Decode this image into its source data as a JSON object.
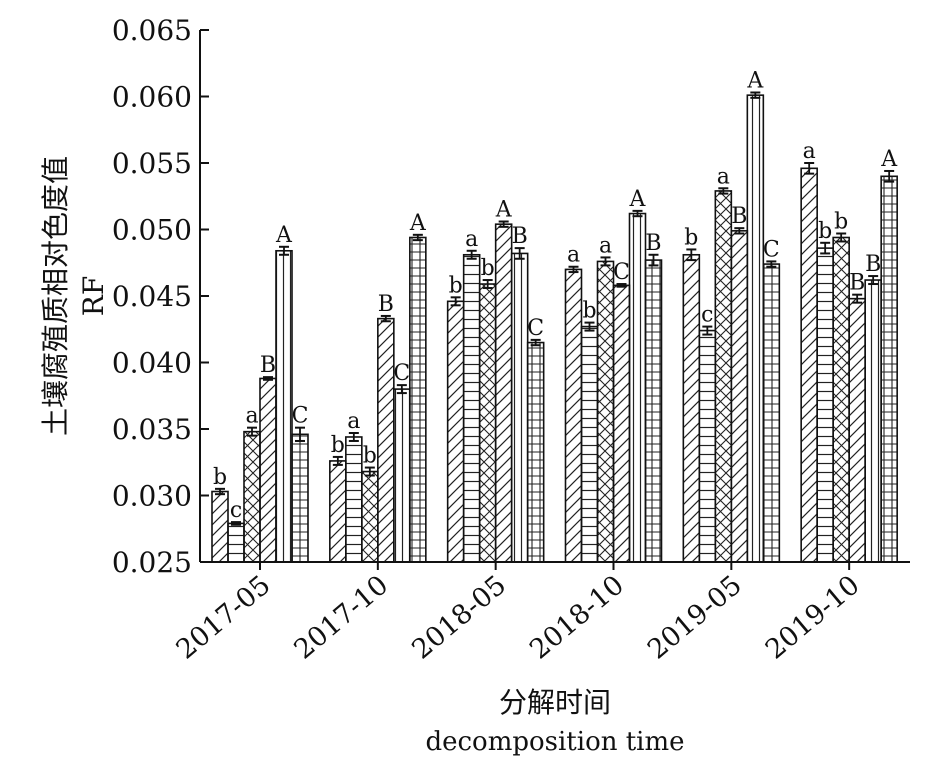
{
  "chart_data": {
    "type": "bar",
    "title": "",
    "xlabel": "分解时间",
    "xlabel_en": "decomposition time",
    "ylabel": "土壤腐殖质相对色度值",
    "ylabel_en": "RF",
    "ylim": [
      0.025,
      0.065
    ],
    "yticks": [
      "0.025",
      "0.030",
      "0.035",
      "0.040",
      "0.045",
      "0.050",
      "0.055",
      "0.060",
      "0.065"
    ],
    "grid": false,
    "legend": "none",
    "categories": [
      "2017-05",
      "2017-10",
      "2018-05",
      "2018-10",
      "2019-05",
      "2019-10"
    ],
    "series": [
      {
        "pattern": "diag-right",
        "values": [
          0.0303,
          0.0326,
          0.0446,
          0.047,
          0.0481,
          0.0546
        ],
        "errors": [
          0.0002,
          0.0003,
          0.0003,
          0.0002,
          0.0004,
          0.0004
        ],
        "labels": [
          "b",
          "b",
          "b",
          "a",
          "b",
          "a"
        ]
      },
      {
        "pattern": "horizontal",
        "values": [
          0.0279,
          0.0344,
          0.0481,
          0.0427,
          0.0424,
          0.0486
        ],
        "errors": [
          0.0001,
          0.0003,
          0.0003,
          0.0003,
          0.0003,
          0.0004
        ],
        "labels": [
          "c",
          "a",
          "a",
          "b",
          "c",
          "b"
        ]
      },
      {
        "pattern": "cross-diag",
        "values": [
          0.0348,
          0.0318,
          0.0459,
          0.0476,
          0.0529,
          0.0494
        ],
        "errors": [
          0.0003,
          0.0003,
          0.0003,
          0.0003,
          0.0002,
          0.0003
        ],
        "labels": [
          "a",
          "b",
          "b",
          "a",
          "a",
          "b"
        ]
      },
      {
        "pattern": "diag-right",
        "values": [
          0.0388,
          0.0433,
          0.0504,
          0.0458,
          0.0499,
          0.0448
        ],
        "errors": [
          0.0001,
          0.0002,
          0.0002,
          0.0001,
          0.0002,
          0.0003
        ],
        "labels": [
          "B",
          "B",
          "A",
          "C",
          "B",
          "B"
        ]
      },
      {
        "pattern": "vertical",
        "values": [
          0.0484,
          0.038,
          0.0482,
          0.0512,
          0.0601,
          0.0462
        ],
        "errors": [
          0.0003,
          0.0003,
          0.0004,
          0.0002,
          0.0002,
          0.0003
        ],
        "labels": [
          "A",
          "C",
          "B",
          "A",
          "A",
          "B"
        ]
      },
      {
        "pattern": "grid",
        "values": [
          0.0346,
          0.0494,
          0.0415,
          0.0477,
          0.0474,
          0.054
        ],
        "errors": [
          0.0005,
          0.0002,
          0.0002,
          0.0004,
          0.0002,
          0.0004
        ],
        "labels": [
          "C",
          "A",
          "C",
          "B",
          "C",
          "A"
        ]
      }
    ]
  }
}
